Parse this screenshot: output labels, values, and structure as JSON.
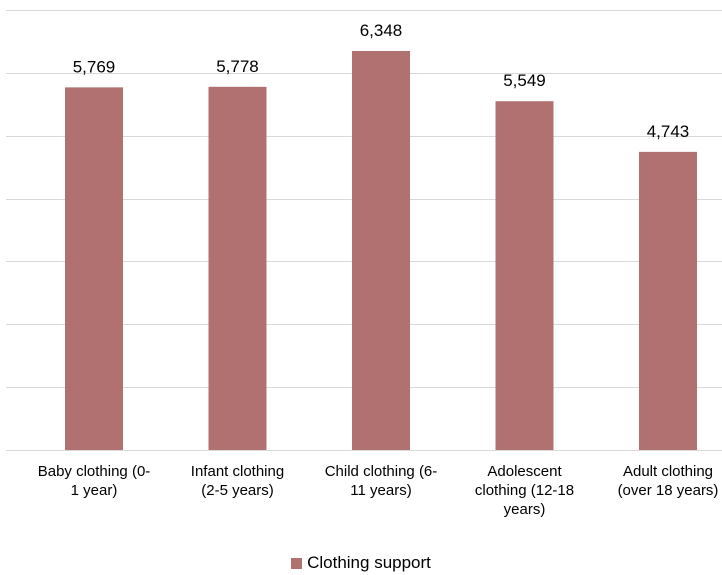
{
  "chart_data": {
    "type": "bar",
    "categories": [
      [
        "Baby clothing (0-",
        "1 year)"
      ],
      [
        "Infant clothing",
        "(2-5 years)"
      ],
      [
        "Child clothing (6-",
        "11 years)"
      ],
      [
        "Adolescent",
        "clothing (12-18",
        "years)"
      ],
      [
        "Adult clothing",
        "(over 18 years)"
      ]
    ],
    "series": [
      {
        "name": "Clothing support",
        "values": [
          5769,
          5778,
          6348,
          5549,
          4743
        ],
        "labels": [
          "5,769",
          "5,778",
          "6,348",
          "5,549",
          "4,743"
        ],
        "color": "#b07170"
      }
    ],
    "ylim": [
      0,
      7000
    ],
    "grid": true,
    "legend": "bottom",
    "gridline_color": "#d9d9d9"
  }
}
